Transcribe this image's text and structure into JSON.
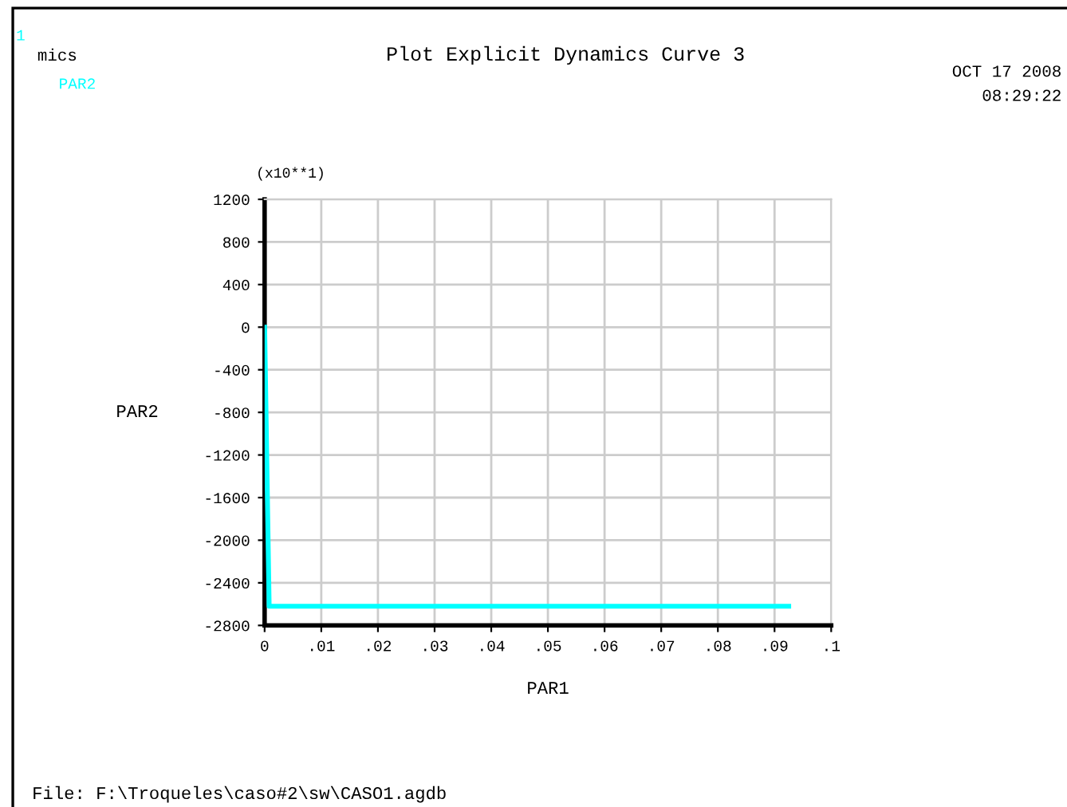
{
  "chart_data": {
    "type": "line",
    "title": "Plot Explicit Dynamics Curve 3",
    "xlabel": "PAR1",
    "ylabel": "PAR2",
    "annotations": [
      "1",
      "mics",
      "OCT 17 2008",
      "08:29:22",
      "(x10**1)",
      "File: F:\\Troqueles\\caso#2\\sw\\CASO1.agdb"
    ],
    "x": [
      0,
      0.0008,
      0.0925
    ],
    "series": [
      {
        "name": "PAR2",
        "color": "#00ffff",
        "values": [
          0,
          -2620,
          -2620
        ]
      }
    ],
    "xlim": [
      0,
      0.1
    ],
    "xticks": [
      {
        "value": 0,
        "label": "0"
      },
      {
        "value": 0.01,
        "label": ".01"
      },
      {
        "value": 0.02,
        "label": ".02"
      },
      {
        "value": 0.03,
        "label": ".03"
      },
      {
        "value": 0.04,
        "label": ".04"
      },
      {
        "value": 0.05,
        "label": ".05"
      },
      {
        "value": 0.06,
        "label": ".06"
      },
      {
        "value": 0.07,
        "label": ".07"
      },
      {
        "value": 0.08,
        "label": ".08"
      },
      {
        "value": 0.09,
        "label": ".09"
      },
      {
        "value": 0.1,
        "label": ".1"
      }
    ],
    "ylim": [
      -2800,
      1200
    ],
    "yticks": [
      -2800,
      -2400,
      -2000,
      -1600,
      -1200,
      -800,
      -400,
      0,
      400,
      800,
      1200
    ],
    "grid": true,
    "legend": "top left",
    "marker": "none",
    "line_style": "solid"
  }
}
